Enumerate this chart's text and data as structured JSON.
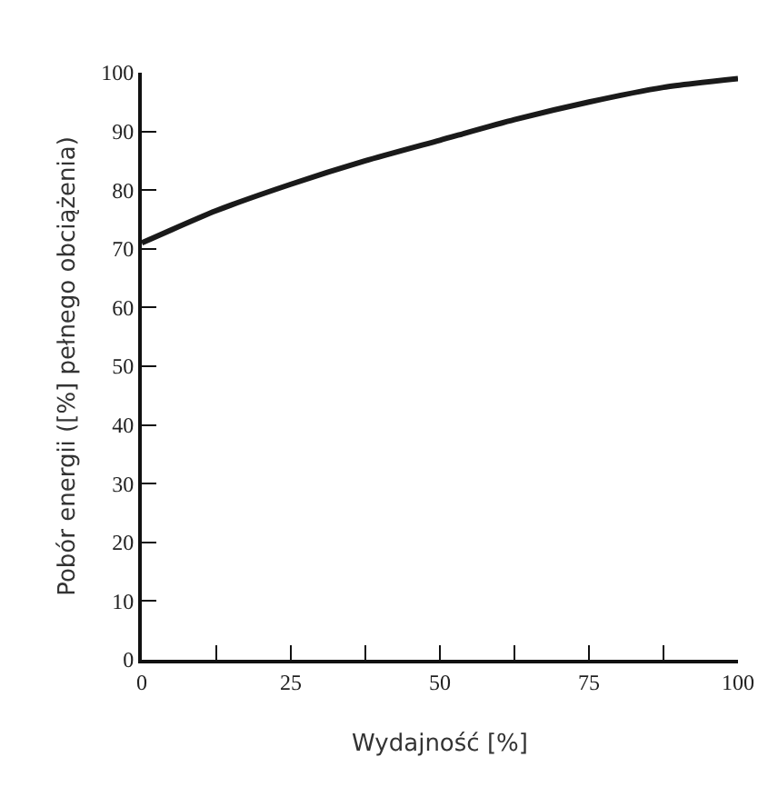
{
  "chart_data": {
    "type": "line",
    "xlabel": "Wydajność [%]",
    "ylabel": "Pobór energii ([%] pełnego obciążenia)",
    "x": [
      0,
      12.5,
      25,
      37.5,
      50,
      62.5,
      75,
      87.5,
      100
    ],
    "series": [
      {
        "color": "#1a1a1a",
        "values": [
          71,
          76.5,
          81,
          85,
          88.5,
          92,
          95,
          97.5,
          99
        ]
      }
    ],
    "xlim": [
      0,
      100
    ],
    "ylim": [
      0,
      100
    ],
    "xticks": [
      0,
      {
        "value": 12.5,
        "label": null
      },
      25,
      {
        "value": 37.5,
        "label": null
      },
      50,
      {
        "value": 62.5,
        "label": null
      },
      75,
      {
        "value": 87.5,
        "label": null
      },
      100
    ],
    "yticks": [
      0,
      10,
      20,
      30,
      40,
      50,
      60,
      70,
      80,
      90,
      100
    ],
    "marker": "none",
    "line_style": "solid"
  }
}
